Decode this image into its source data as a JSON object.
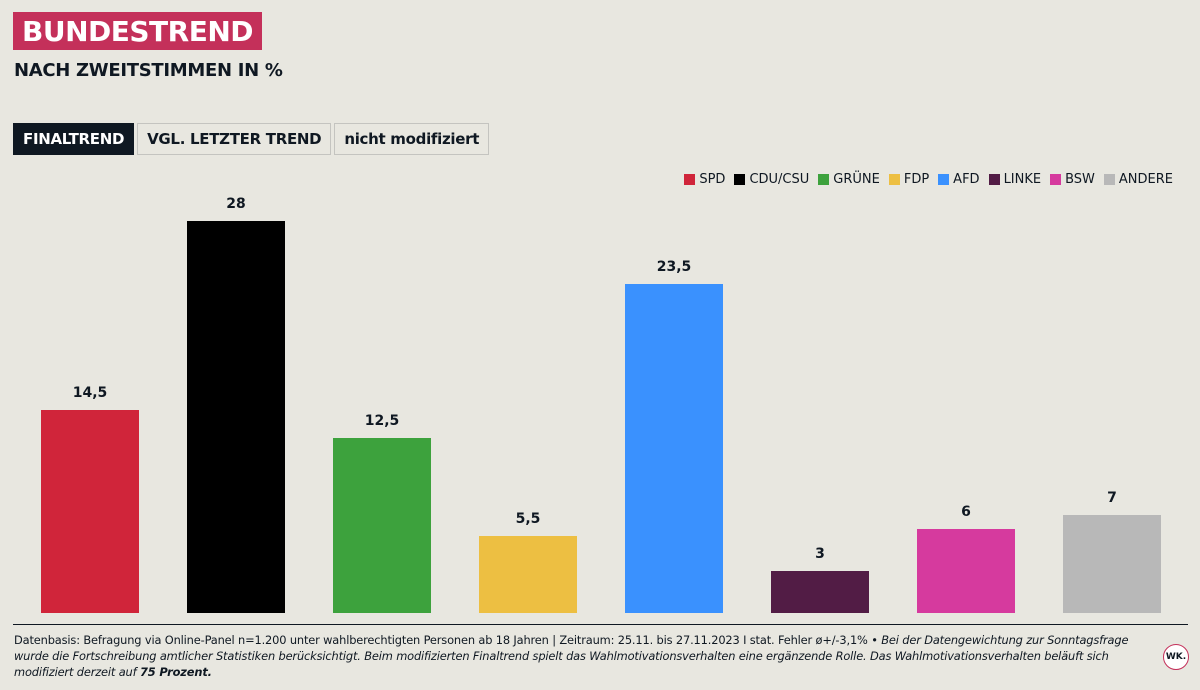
{
  "header": {
    "title": "BUNDESTREND",
    "subtitle": "NACH ZWEITSTIMMEN IN %"
  },
  "tabs": [
    {
      "label": "FINALTREND",
      "active": true
    },
    {
      "label": "VGL. LETZTER TREND",
      "active": false
    },
    {
      "label": "nicht modifiziert",
      "active": false
    }
  ],
  "legend": [
    {
      "label": "SPD",
      "color": "#d0253a"
    },
    {
      "label": "CDU/CSU",
      "color": "#000000"
    },
    {
      "label": "GRÜNE",
      "color": "#3da23d"
    },
    {
      "label": "FDP",
      "color": "#edbf42"
    },
    {
      "label": "AFD",
      "color": "#3a91fe"
    },
    {
      "label": "LINKE",
      "color": "#521c45"
    },
    {
      "label": "BSW",
      "color": "#d63a9e"
    },
    {
      "label": "ANDERE",
      "color": "#b8b8b8"
    }
  ],
  "chart_data": {
    "type": "bar",
    "title": "BUNDESTREND",
    "subtitle": "NACH ZWEITSTIMMEN IN %",
    "categories": [
      "SPD",
      "CDU/CSU",
      "GRÜNE",
      "FDP",
      "AFD",
      "LINKE",
      "BSW",
      "ANDERE"
    ],
    "values": [
      14.5,
      28,
      12.5,
      5.5,
      23.5,
      3,
      6,
      7
    ],
    "value_labels": [
      "14,5",
      "28",
      "12,5",
      "5,5",
      "23,5",
      "3",
      "6",
      "7"
    ],
    "colors": [
      "#d0253a",
      "#000000",
      "#3da23d",
      "#edbf42",
      "#3a91fe",
      "#521c45",
      "#d63a9e",
      "#b8b8b8"
    ],
    "xlabel": "",
    "ylabel": "%",
    "ylim": [
      0,
      30
    ],
    "grid": false,
    "legend_position": "top-right"
  },
  "footnote": {
    "line1_plain": "Datenbasis: Befragung via Online-Panel n=1.200 unter wahlberechtigten Personen ab 18 Jahren | Zeitraum: 25.11. bis 27.11.2023 I stat. Fehler ø+/-3,1% • ",
    "italic": "Bei der Datengewichtung zur Sonntagsfrage wurde die Fortschreibung amtlicher Statistiken berücksichtigt. Beim modifizierten Finaltrend spielt das Wahlmotivationsverhalten eine ergänzende Rolle. Das Wahlmotivationsverhalten beläuft sich modifiziert derzeit auf ",
    "bold": "75 Prozent."
  },
  "logo": {
    "text": "WK."
  }
}
